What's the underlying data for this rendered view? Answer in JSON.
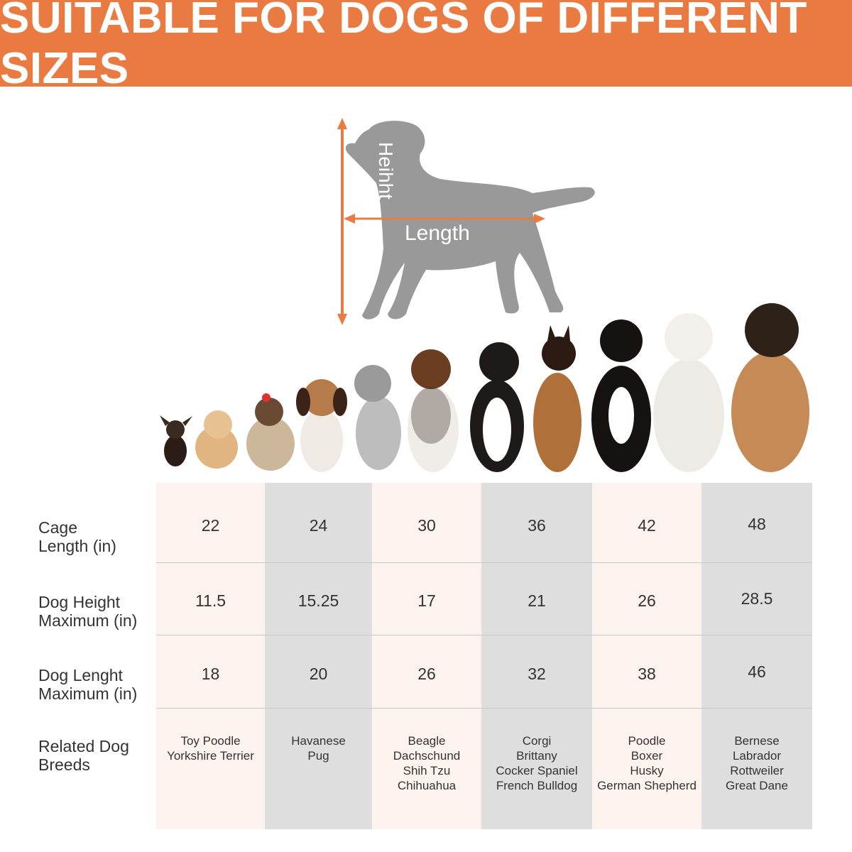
{
  "banner": {
    "title": "SUITABLE FOR DOGS OF DIFFERENT SIZES"
  },
  "diagram": {
    "height_label": "Heihht",
    "length_label": "Length"
  },
  "colors": {
    "accent": "#e97a41",
    "silhouette": "#999999",
    "col_light": "#fdf3ee",
    "col_grey": "#dedede"
  },
  "table": {
    "row_labels": [
      {
        "line1": "Cage",
        "line2": "Length (in)"
      },
      {
        "line1": "Dog Height",
        "line2": "Maximum (in)"
      },
      {
        "line1": "Dog Lenght",
        "line2": "Maximum (in)"
      },
      {
        "line1": "Related Dog",
        "line2": "Breeds"
      }
    ],
    "cage_length": [
      "22",
      "24",
      "30",
      "36",
      "42",
      "48"
    ],
    "dog_height_max": [
      "11.5",
      "15.25",
      "17",
      "21",
      "26",
      "28.5"
    ],
    "dog_length_max": [
      "18",
      "20",
      "26",
      "32",
      "38",
      "46"
    ],
    "breeds": [
      [
        "Toy Poodle",
        "Yorkshire Terrier"
      ],
      [
        "Havanese",
        "Pug"
      ],
      [
        "Beagle",
        "Dachschund",
        "Shih Tzu",
        "Chihuahua"
      ],
      [
        "Corgi",
        "Brittany",
        "Cocker Spaniel",
        "French Bulldog"
      ],
      [
        "Poodle",
        "Boxer",
        "Husky",
        "German Shepherd"
      ],
      [
        "Bernese",
        "Labrador",
        "Rottweiler",
        "Great Dane"
      ]
    ]
  }
}
